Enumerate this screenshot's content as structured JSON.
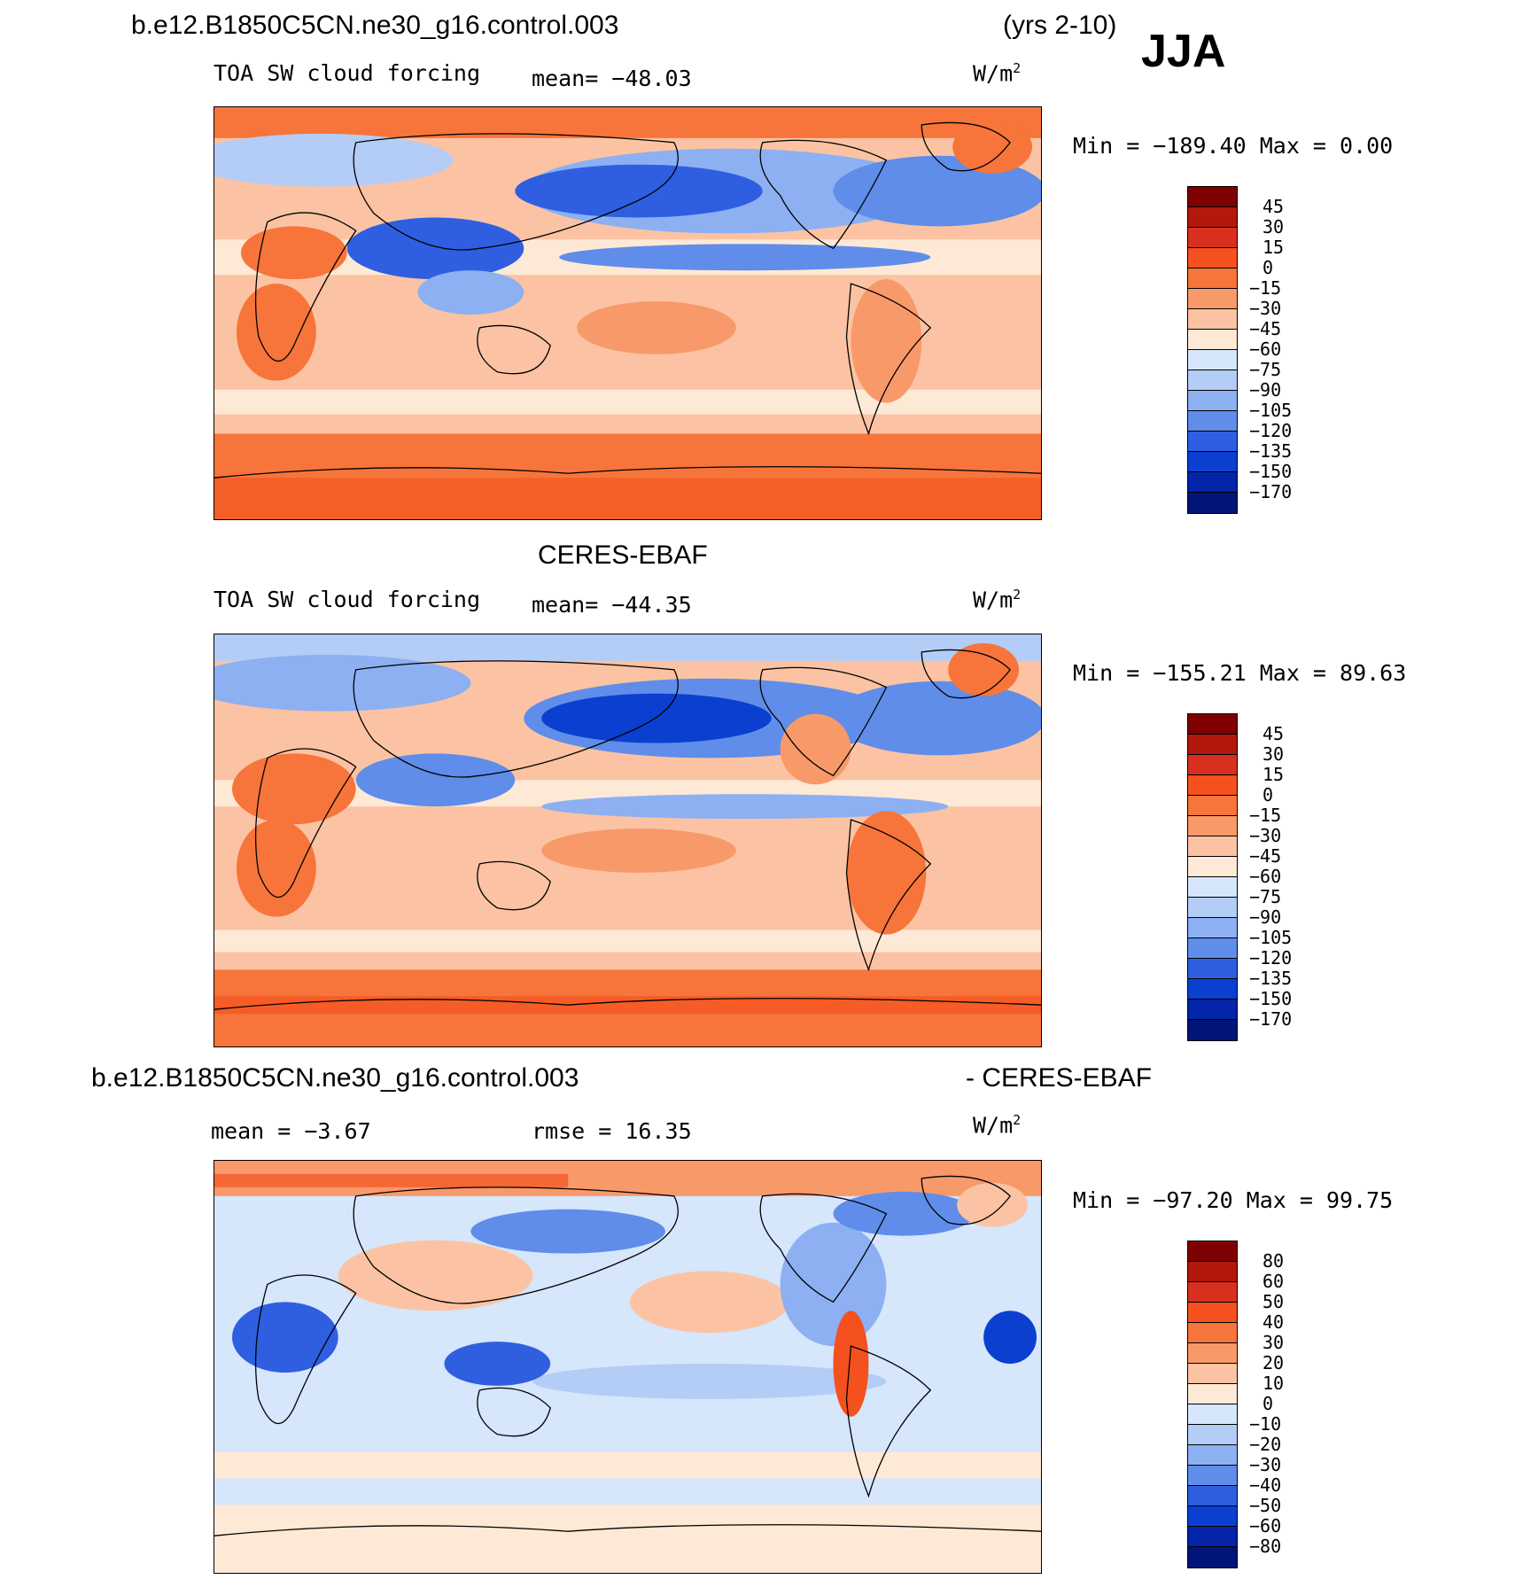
{
  "header": {
    "case_name": "b.e12.B1850C5CN.ne30_g16.control.003",
    "years": "(yrs 2-10)",
    "season": "JJA"
  },
  "panels": [
    {
      "id": "model",
      "title": "",
      "field": "TOA SW cloud forcing",
      "mean_label": "mean= −48.03",
      "units": "W/m",
      "units_sup": "2",
      "minmax": "Min = −189.40 Max = 0.00",
      "levels": [
        "45",
        "30",
        "15",
        "0",
        "−15",
        "−30",
        "−45",
        "−60",
        "−75",
        "−90",
        "−105",
        "−120",
        "−135",
        "−150",
        "−170"
      ]
    },
    {
      "id": "obs",
      "title": "CERES-EBAF",
      "field": "TOA SW cloud forcing",
      "mean_label": "mean= −44.35",
      "units": "W/m",
      "units_sup": "2",
      "minmax": "Min = −155.21 Max = 89.63",
      "levels": [
        "45",
        "30",
        "15",
        "0",
        "−15",
        "−30",
        "−45",
        "−60",
        "−75",
        "−90",
        "−105",
        "−120",
        "−135",
        "−150",
        "−170"
      ]
    },
    {
      "id": "diff",
      "title_left": "b.e12.B1850C5CN.ne30_g16.control.003",
      "title_right": "- CERES-EBAF",
      "mean_label": "mean = −3.67",
      "rmse_label": "rmse = 16.35",
      "units": "W/m",
      "units_sup": "2",
      "minmax": "Min = −97.20 Max = 99.75",
      "levels": [
        "80",
        "60",
        "50",
        "40",
        "30",
        "20",
        "10",
        "0",
        "−10",
        "−20",
        "−30",
        "−40",
        "−50",
        "−60",
        "−80"
      ]
    }
  ],
  "colors": {
    "palette": [
      "#7f0000",
      "#b2180e",
      "#d7301f",
      "#f4511e",
      "#f7753a",
      "#f8996a",
      "#fbc3a3",
      "#fde9d6",
      "#d6e6fb",
      "#b3cdf7",
      "#8cb0f2",
      "#5f8de9",
      "#2f5fe0",
      "#0b3fd0",
      "#0525a8",
      "#011477"
    ]
  }
}
